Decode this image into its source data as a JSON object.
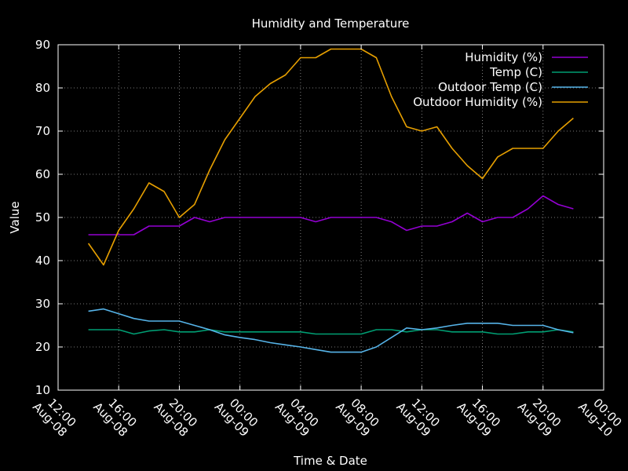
{
  "chart_data": {
    "type": "line",
    "title": "Humidity and Temperature",
    "xlabel": "Time & Date",
    "ylabel": "Value",
    "ylim": [
      10,
      90
    ],
    "yticks": [
      10,
      20,
      30,
      40,
      50,
      60,
      70,
      80,
      90
    ],
    "xlim_hours": [
      0,
      36
    ],
    "xticks": [
      {
        "hour": 0,
        "time": "12:00",
        "date": "Aug-08"
      },
      {
        "hour": 4,
        "time": "16:00",
        "date": "Aug-08"
      },
      {
        "hour": 8,
        "time": "20:00",
        "date": "Aug-08"
      },
      {
        "hour": 12,
        "time": "00:00",
        "date": "Aug-09"
      },
      {
        "hour": 16,
        "time": "04:00",
        "date": "Aug-09"
      },
      {
        "hour": 20,
        "time": "08:00",
        "date": "Aug-09"
      },
      {
        "hour": 24,
        "time": "12:00",
        "date": "Aug-09"
      },
      {
        "hour": 28,
        "time": "16:00",
        "date": "Aug-09"
      },
      {
        "hour": 32,
        "time": "20:00",
        "date": "Aug-09"
      },
      {
        "hour": 36,
        "time": "00:00",
        "date": "Aug-10"
      }
    ],
    "grid": true,
    "legend_position": "top-right",
    "x_hours": [
      2,
      3,
      4,
      5,
      6,
      7,
      8,
      9,
      10,
      11,
      12,
      13,
      14,
      15,
      16,
      17,
      18,
      19,
      20,
      21,
      22,
      23,
      24,
      25,
      26,
      27,
      28,
      29,
      30,
      31,
      32,
      33,
      34
    ],
    "series": [
      {
        "name": "Humidity (%)",
        "color": "#9400d3",
        "values": [
          46,
          46,
          46,
          46,
          48,
          48,
          48,
          50,
          49,
          50,
          50,
          50,
          50,
          50,
          50,
          49,
          50,
          50,
          50,
          50,
          49,
          47,
          48,
          48,
          49,
          51,
          49,
          50,
          50,
          52,
          55,
          53,
          52
        ]
      },
      {
        "name": "Temp (C)",
        "color": "#009e73",
        "values": [
          24,
          24,
          24,
          23,
          23.7,
          24,
          23.5,
          23.5,
          24,
          23.5,
          23.5,
          23.5,
          23.5,
          23.5,
          23.5,
          23,
          23,
          23,
          23,
          24,
          24,
          23.5,
          24,
          24,
          23.5,
          23.5,
          23.5,
          23,
          23,
          23.5,
          23.5,
          24,
          23.5
        ]
      },
      {
        "name": "Outdoor Temp (C)",
        "color": "#56b4e9",
        "values": [
          28.3,
          28.8,
          27.7,
          26.6,
          26,
          26,
          26,
          25,
          24,
          22.8,
          22.2,
          21.7,
          21,
          20.5,
          20,
          19.4,
          18.8,
          18.8,
          18.8,
          20,
          22.2,
          24.4,
          24,
          24.4,
          25,
          25.5,
          25.5,
          25.5,
          25,
          25,
          25,
          24,
          23.3
        ]
      },
      {
        "name": "Outdoor Humidity (%)",
        "color": "#e69f00",
        "values": [
          44,
          39,
          47,
          52,
          58,
          56,
          50,
          53,
          61,
          68,
          73,
          78,
          81,
          83,
          87,
          87,
          89,
          89,
          89,
          87,
          78,
          71,
          70,
          71,
          66,
          62,
          59,
          64,
          66,
          66,
          66,
          70,
          73
        ]
      }
    ]
  }
}
